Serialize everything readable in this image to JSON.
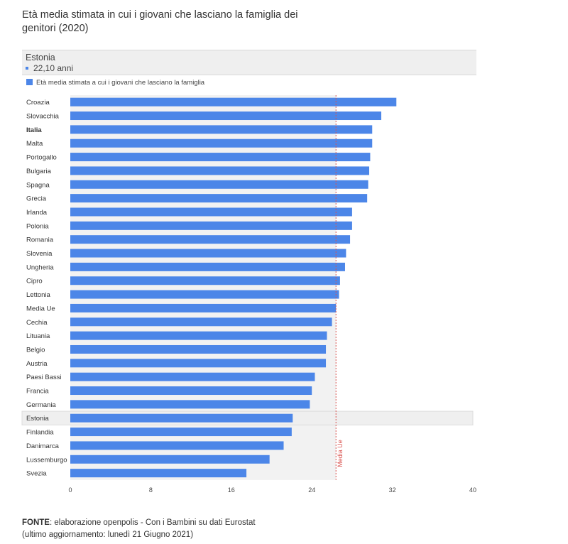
{
  "title": "Età media stimata in cui i giovani che lasciano la famiglia dei genitori (2020)",
  "tooltip": {
    "name": "Estonia",
    "value": "22,10 anni"
  },
  "source": {
    "label": "FONTE",
    "text": ": elaborazione openpolis - Con i Bambini su dati Eurostat",
    "updated": "(ultimo aggiornamento: lunedì 21 Giugno 2021)"
  },
  "colors": {
    "bar": "#4c86e8",
    "reference_line": "#d9534f",
    "highlight_band": "#f2f2f2"
  },
  "chart_data": {
    "type": "bar",
    "orientation": "horizontal",
    "legend": "Età media stimata a cui i giovani che lasciano la famiglia",
    "categories": [
      "Croazia",
      "Slovacchia",
      "Italia",
      "Malta",
      "Portogallo",
      "Bulgaria",
      "Spagna",
      "Grecia",
      "Irlanda",
      "Polonia",
      "Romania",
      "Slovenia",
      "Ungheria",
      "Cipro",
      "Lettonia",
      "Media Ue",
      "Cechia",
      "Lituania",
      "Belgio",
      "Austria",
      "Paesi Bassi",
      "Francia",
      "Germania",
      "Estonia",
      "Finlandia",
      "Danimarca",
      "Lussemburgo",
      "Svezia"
    ],
    "values": [
      32.4,
      30.9,
      30.0,
      30.0,
      29.8,
      29.7,
      29.6,
      29.5,
      28.0,
      28.0,
      27.8,
      27.4,
      27.3,
      26.8,
      26.7,
      26.4,
      26.0,
      25.5,
      25.4,
      25.4,
      24.3,
      24.0,
      23.8,
      22.1,
      22.0,
      21.2,
      19.8,
      17.5
    ],
    "bold_category": "Italia",
    "highlight_category": "Estonia",
    "reference_line": {
      "label": "Media Ue",
      "value": 26.4
    },
    "xticks": [
      0,
      8,
      16,
      24,
      32,
      40
    ],
    "xlim": [
      0,
      40
    ],
    "grid": false
  }
}
